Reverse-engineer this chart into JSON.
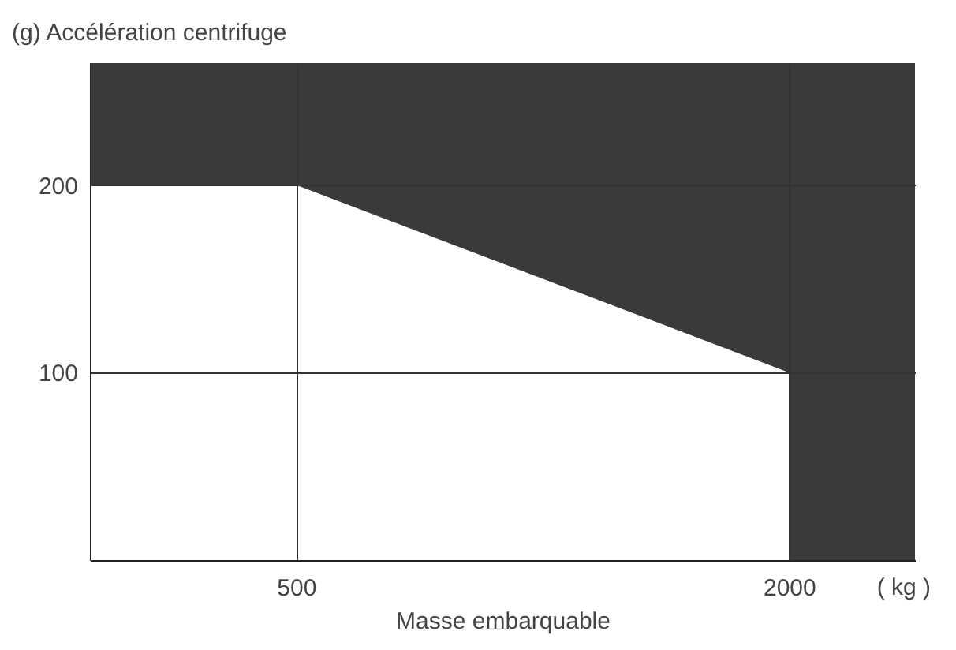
{
  "chart_data": {
    "type": "area",
    "ylabel": "(g) Accélération centrifuge",
    "xlabel": "Masse embarquable",
    "log": "x",
    "xlim": [
      280,
      2850
    ],
    "xticks": [
      500,
      2000
    ],
    "ylim": [
      0,
      265
    ],
    "yticks": [
      100,
      200
    ],
    "grid": true,
    "annotations": [
      "( kg )"
    ],
    "bands": [
      {
        "axis": "y",
        "from": 0,
        "to": 265,
        "color": "#3a3a3a"
      }
    ],
    "series": [
      {
        "color": "#ffffff",
        "x": [
          280,
          500,
          2000,
          2000,
          2850
        ],
        "values": [
          200,
          200,
          100,
          0,
          0
        ]
      }
    ]
  }
}
